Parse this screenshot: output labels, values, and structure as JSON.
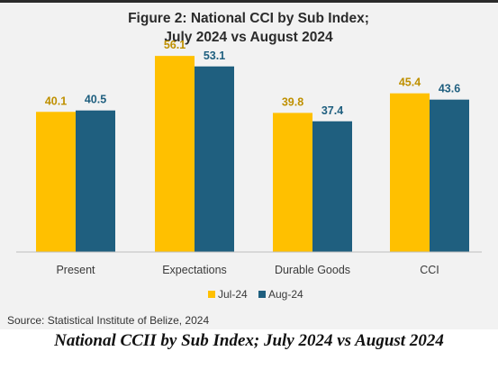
{
  "chart_data": {
    "type": "bar",
    "title_lines": [
      "Figure 2: National CCI by Sub Index;",
      "July 2024 vs August 2024"
    ],
    "categories": [
      "Present",
      "Expectations",
      "Durable Goods",
      "CCI"
    ],
    "series": [
      {
        "name": "Jul-24",
        "color": "#ffc000",
        "label_color": "#bf9000",
        "values": [
          40.1,
          56.1,
          39.8,
          45.4
        ]
      },
      {
        "name": "Aug-24",
        "color": "#1f5f7f",
        "label_color": "#1f5f7f",
        "values": [
          40.5,
          53.1,
          37.4,
          43.6
        ]
      }
    ],
    "ylim": [
      0,
      60
    ],
    "grid": false,
    "legend_position": "bottom-center",
    "source": "Source: Statistical Institute of Belize, 2024"
  },
  "caption": "National CCII by Sub Index; July 2024 vs August 2024"
}
